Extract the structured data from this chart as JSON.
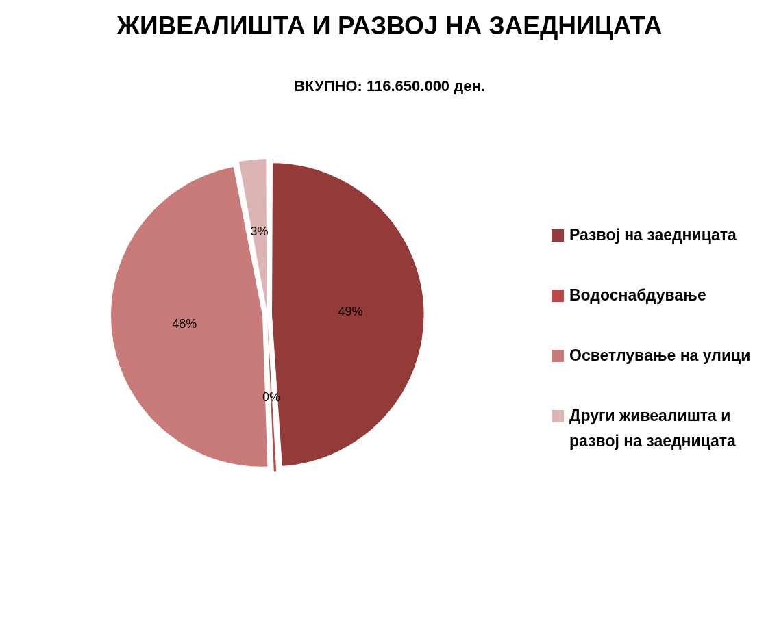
{
  "chart_data": {
    "type": "pie",
    "title": "ЖИВЕАЛИШТА И РАЗВОЈ НА ЗАЕДНИЦАТА",
    "subtitle": "ВКУПНО: 116.650.000 ден.",
    "categories": [
      "Развој на заедницата",
      "Водоснабдување",
      "Осветлување на улици",
      "Други живеалишта и развој на заедницата"
    ],
    "values": [
      49,
      0.4,
      47.6,
      3
    ],
    "value_labels": [
      "49%",
      "0%",
      "48%",
      "3%"
    ],
    "colors": [
      "#943b3a",
      "#b94a48",
      "#c97b79",
      "#ddb4b4"
    ],
    "legend": "right"
  }
}
